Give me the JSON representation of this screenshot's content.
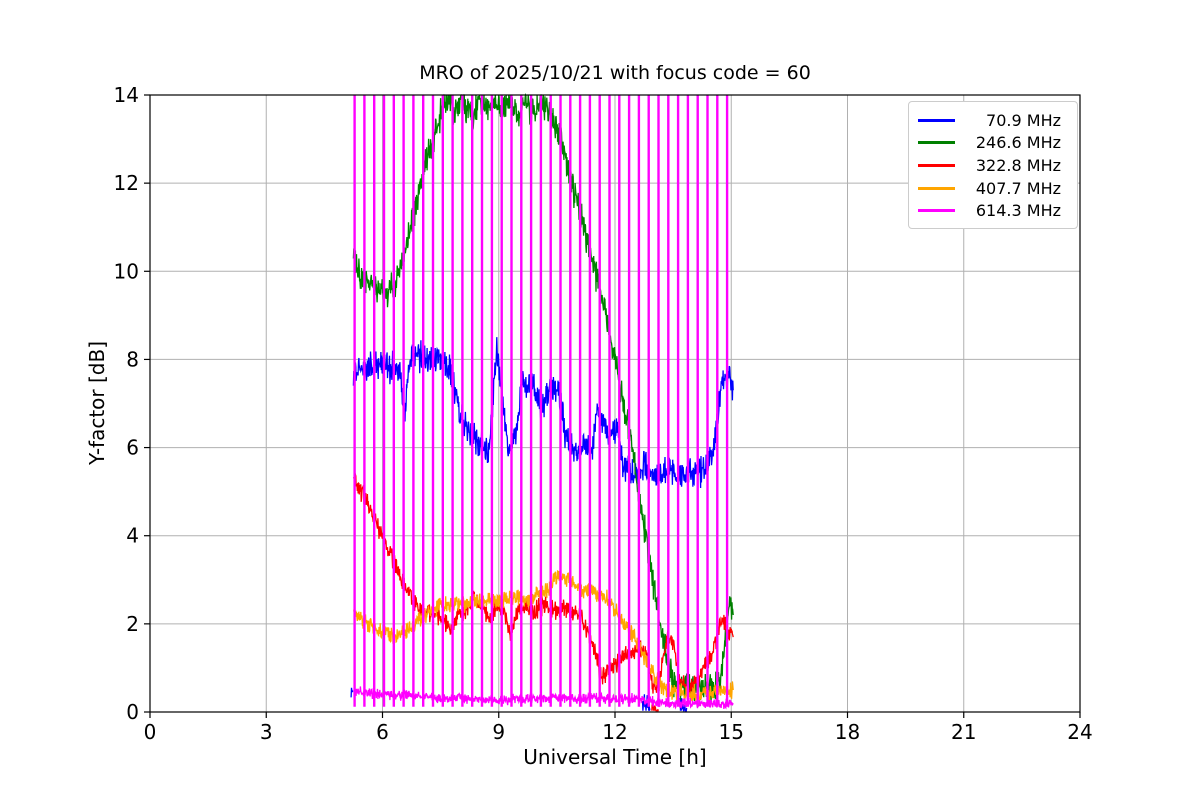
{
  "title": "MRO of 2025/10/21 with focus code = 60",
  "chart_data": {
    "type": "line",
    "title": "MRO of 2025/10/21 with focus code = 60",
    "xlabel": "Universal Time [h]",
    "ylabel": "Y-factor [dB]",
    "xlim": [
      0,
      24
    ],
    "ylim": [
      0,
      14
    ],
    "xticks": [
      0,
      3,
      6,
      9,
      12,
      15,
      18,
      21,
      24
    ],
    "yticks": [
      0,
      2,
      4,
      6,
      8,
      10,
      12,
      14
    ],
    "grid": true,
    "grid_color": "#b0b0b0",
    "legend_position": "upper right",
    "data_time_range_h": [
      5.2,
      15.05
    ],
    "series": [
      {
        "name": "70.9 MHz",
        "label": "70.9 MHz",
        "color": "#0000ff",
        "noise": 0.27,
        "segments": [
          [
            [
              5.19,
              0.3
            ],
            [
              5.23,
              0.45
            ]
          ],
          [
            [
              5.25,
              7.7
            ],
            [
              5.5,
              7.8
            ],
            [
              5.9,
              7.9
            ],
            [
              6.2,
              7.8
            ],
            [
              6.45,
              7.9
            ],
            [
              6.55,
              6.7
            ],
            [
              6.7,
              7.9
            ],
            [
              7.0,
              8.1
            ],
            [
              7.3,
              7.9
            ],
            [
              7.5,
              8.1
            ],
            [
              7.8,
              7.6
            ],
            [
              8.0,
              6.7
            ],
            [
              8.2,
              6.4
            ],
            [
              8.5,
              6.1
            ],
            [
              8.75,
              5.95
            ],
            [
              8.95,
              8.3
            ],
            [
              9.1,
              7.0
            ],
            [
              9.25,
              5.9
            ],
            [
              9.45,
              6.3
            ],
            [
              9.6,
              7.5
            ],
            [
              9.9,
              7.4
            ],
            [
              10.1,
              6.9
            ],
            [
              10.35,
              7.4
            ],
            [
              10.55,
              7.3
            ],
            [
              10.75,
              6.1
            ],
            [
              11.0,
              5.9
            ],
            [
              11.2,
              6.0
            ],
            [
              11.4,
              5.9
            ],
            [
              11.55,
              6.9
            ],
            [
              11.7,
              6.6
            ],
            [
              11.85,
              6.2
            ],
            [
              12.05,
              6.4
            ],
            [
              12.2,
              5.6
            ],
            [
              12.5,
              5.4
            ],
            [
              12.8,
              5.6
            ],
            [
              13.1,
              5.3
            ],
            [
              13.4,
              5.5
            ],
            [
              13.7,
              5.3
            ],
            [
              14.0,
              5.4
            ],
            [
              14.3,
              5.5
            ],
            [
              14.55,
              5.9
            ],
            [
              14.75,
              7.4
            ],
            [
              14.95,
              7.6
            ],
            [
              15.05,
              7.3
            ]
          ],
          [
            [
              12.7,
              0.1
            ],
            [
              12.9,
              0.08
            ]
          ],
          [
            [
              13.68,
              0.08
            ],
            [
              13.85,
              0.09
            ]
          ]
        ]
      },
      {
        "name": "246.6 MHz",
        "label": "246.6 MHz",
        "color": "#008000",
        "noise": 0.28,
        "segments": [
          [
            [
              5.25,
              10.6
            ],
            [
              5.35,
              10.0
            ],
            [
              5.5,
              9.9
            ],
            [
              5.7,
              9.7
            ],
            [
              5.9,
              9.55
            ],
            [
              6.1,
              9.5
            ],
            [
              6.3,
              9.7
            ],
            [
              6.5,
              10.2
            ],
            [
              6.7,
              10.9
            ],
            [
              6.9,
              11.6
            ],
            [
              7.1,
              12.4
            ],
            [
              7.35,
              13.1
            ],
            [
              7.6,
              13.8
            ],
            [
              7.7,
              13.9
            ],
            [
              7.9,
              13.6
            ],
            [
              8.05,
              13.9
            ],
            [
              8.3,
              13.5
            ],
            [
              8.5,
              13.9
            ],
            [
              8.7,
              13.6
            ],
            [
              8.9,
              13.95
            ],
            [
              9.1,
              13.7
            ],
            [
              9.3,
              13.9
            ],
            [
              9.5,
              13.5
            ],
            [
              9.7,
              13.85
            ],
            [
              9.9,
              13.6
            ],
            [
              10.1,
              13.85
            ],
            [
              10.3,
              13.6
            ],
            [
              10.45,
              13.4
            ],
            [
              10.6,
              13.0
            ],
            [
              10.8,
              12.2
            ],
            [
              11.0,
              11.6
            ],
            [
              11.2,
              11.0
            ],
            [
              11.4,
              10.3
            ],
            [
              11.6,
              9.6
            ],
            [
              11.8,
              8.8
            ],
            [
              12.0,
              8.0
            ],
            [
              12.2,
              7.1
            ],
            [
              12.4,
              6.2
            ],
            [
              12.6,
              5.0
            ],
            [
              12.8,
              4.0
            ],
            [
              13.0,
              2.9
            ],
            [
              13.2,
              1.8
            ],
            [
              13.4,
              1.0
            ],
            [
              13.55,
              0.65
            ],
            [
              13.8,
              0.6
            ],
            [
              14.0,
              0.55
            ],
            [
              14.2,
              0.6
            ],
            [
              14.4,
              0.55
            ],
            [
              14.6,
              0.6
            ],
            [
              14.75,
              0.9
            ],
            [
              14.85,
              1.6
            ],
            [
              14.95,
              2.6
            ],
            [
              15.05,
              2.2
            ]
          ]
        ]
      },
      {
        "name": "322.8 MHz",
        "label": "322.8 MHz",
        "color": "#ff0000",
        "noise": 0.17,
        "segments": [
          [
            [
              5.25,
              5.35
            ],
            [
              5.45,
              5.0
            ],
            [
              5.7,
              4.6
            ],
            [
              5.95,
              4.1
            ],
            [
              6.2,
              3.6
            ],
            [
              6.45,
              3.1
            ],
            [
              6.7,
              2.65
            ],
            [
              6.9,
              2.4
            ],
            [
              7.1,
              2.3
            ],
            [
              7.35,
              2.2
            ],
            [
              7.6,
              2.05
            ],
            [
              7.8,
              1.9
            ],
            [
              8.0,
              2.2
            ],
            [
              8.2,
              2.3
            ],
            [
              8.35,
              2.6
            ],
            [
              8.55,
              2.4
            ],
            [
              8.75,
              2.1
            ],
            [
              8.95,
              2.4
            ],
            [
              9.15,
              2.3
            ],
            [
              9.3,
              1.8
            ],
            [
              9.5,
              2.3
            ],
            [
              9.7,
              2.4
            ],
            [
              9.9,
              2.3
            ],
            [
              10.1,
              2.4
            ],
            [
              10.3,
              2.4
            ],
            [
              10.5,
              2.3
            ],
            [
              10.7,
              2.35
            ],
            [
              10.9,
              2.3
            ],
            [
              11.1,
              2.2
            ],
            [
              11.3,
              1.8
            ],
            [
              11.5,
              1.3
            ],
            [
              11.65,
              0.75
            ],
            [
              11.8,
              0.9
            ],
            [
              12.0,
              1.1
            ],
            [
              12.2,
              1.25
            ],
            [
              12.4,
              1.3
            ],
            [
              12.6,
              1.45
            ],
            [
              12.8,
              1.3
            ],
            [
              13.0,
              0.55
            ],
            [
              13.15,
              0.7
            ],
            [
              13.35,
              1.7
            ],
            [
              13.5,
              1.6
            ],
            [
              13.65,
              0.8
            ],
            [
              13.85,
              0.5
            ],
            [
              14.05,
              0.6
            ],
            [
              14.3,
              1.0
            ],
            [
              14.55,
              1.4
            ],
            [
              14.75,
              2.1
            ],
            [
              14.9,
              1.9
            ],
            [
              15.05,
              1.7
            ]
          ],
          [
            [
              12.95,
              0.05
            ],
            [
              13.12,
              0.06
            ]
          ]
        ]
      },
      {
        "name": "407.7 MHz",
        "label": "407.7 MHz",
        "color": "#ffa500",
        "noise": 0.16,
        "segments": [
          [
            [
              5.25,
              2.25
            ],
            [
              5.45,
              2.1
            ],
            [
              5.7,
              1.95
            ],
            [
              5.95,
              1.8
            ],
            [
              6.2,
              1.75
            ],
            [
              6.45,
              1.8
            ],
            [
              6.7,
              1.85
            ],
            [
              6.95,
              2.1
            ],
            [
              7.2,
              2.3
            ],
            [
              7.5,
              2.4
            ],
            [
              7.8,
              2.45
            ],
            [
              8.1,
              2.45
            ],
            [
              8.4,
              2.55
            ],
            [
              8.7,
              2.5
            ],
            [
              9.0,
              2.55
            ],
            [
              9.3,
              2.6
            ],
            [
              9.6,
              2.55
            ],
            [
              9.9,
              2.6
            ],
            [
              10.2,
              2.75
            ],
            [
              10.45,
              3.0
            ],
            [
              10.65,
              3.1
            ],
            [
              10.85,
              3.0
            ],
            [
              11.1,
              2.8
            ],
            [
              11.35,
              2.75
            ],
            [
              11.6,
              2.7
            ],
            [
              11.85,
              2.5
            ],
            [
              12.1,
              2.2
            ],
            [
              12.35,
              1.9
            ],
            [
              12.6,
              1.5
            ],
            [
              12.85,
              1.1
            ],
            [
              13.1,
              0.7
            ],
            [
              13.3,
              0.5
            ],
            [
              13.6,
              0.45
            ],
            [
              13.9,
              0.42
            ],
            [
              14.2,
              0.45
            ],
            [
              14.5,
              0.42
            ],
            [
              14.8,
              0.45
            ],
            [
              15.05,
              0.5
            ]
          ]
        ]
      },
      {
        "name": "614.3 MHz",
        "label": "614.3 MHz",
        "color": "#ff00ff",
        "noise": 0.09,
        "spikes": {
          "start": 5.28,
          "end": 14.9,
          "interval": 0.253,
          "bottom": 0.12,
          "top": 14
        },
        "segments": [
          [
            [
              5.25,
              0.5
            ],
            [
              5.5,
              0.45
            ],
            [
              6.0,
              0.4
            ],
            [
              6.5,
              0.38
            ],
            [
              7.0,
              0.35
            ],
            [
              7.5,
              0.3
            ],
            [
              8.0,
              0.32
            ],
            [
              8.5,
              0.28
            ],
            [
              9.0,
              0.25
            ],
            [
              9.5,
              0.3
            ],
            [
              10.0,
              0.3
            ],
            [
              10.5,
              0.32
            ],
            [
              11.0,
              0.3
            ],
            [
              11.5,
              0.32
            ],
            [
              12.0,
              0.3
            ],
            [
              12.5,
              0.32
            ],
            [
              13.0,
              0.25
            ],
            [
              13.3,
              0.2
            ],
            [
              13.7,
              0.18
            ],
            [
              14.2,
              0.2
            ],
            [
              14.7,
              0.18
            ],
            [
              15.05,
              0.2
            ]
          ]
        ]
      }
    ]
  }
}
